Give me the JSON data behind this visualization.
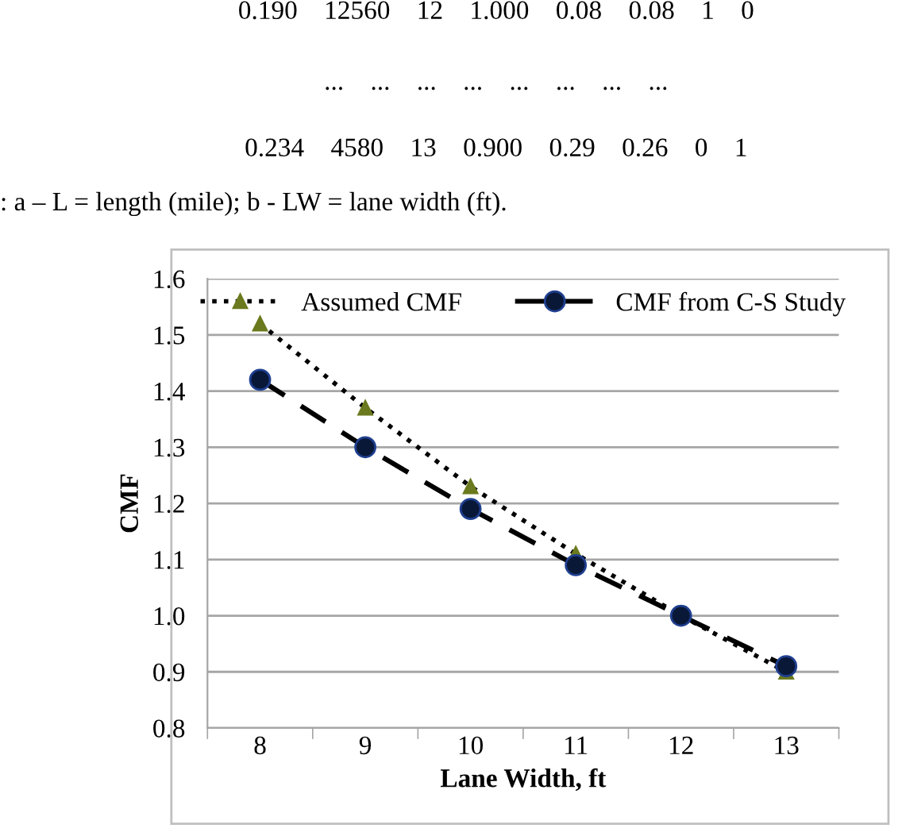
{
  "chart_data": {
    "type": "line",
    "xlabel": "Lane Width, ft",
    "ylabel": "CMF",
    "categories": [
      "8",
      "9",
      "10",
      "11",
      "12",
      "13"
    ],
    "series": [
      {
        "name": "Assumed CMF",
        "color": "#000000",
        "marker": "triangle",
        "line_style": "dotted",
        "values": [
          1.52,
          1.37,
          1.23,
          1.11,
          1.0,
          0.9
        ]
      },
      {
        "name": "CMF from C-S Study",
        "color": "#000000",
        "marker": "circle",
        "line_style": "dashed",
        "values": [
          1.42,
          1.3,
          1.19,
          1.09,
          1.0,
          0.91
        ]
      }
    ],
    "ylim": [
      0.8,
      1.6
    ],
    "yticks": [
      {
        "value": 0.8,
        "label": "0.8"
      },
      {
        "value": 0.9,
        "label": "0.9"
      },
      {
        "value": 1.0,
        "label": "1.0"
      },
      {
        "value": 1.1,
        "label": "1.1"
      },
      {
        "value": 1.2,
        "label": "1.2"
      },
      {
        "value": 1.3,
        "label": "1.3"
      },
      {
        "value": 1.4,
        "label": "1.4"
      },
      {
        "value": 1.5,
        "label": "1.5"
      },
      {
        "value": 1.6,
        "label": "1.6"
      }
    ],
    "grid": "y",
    "legend": "top",
    "annotations": [
      "0.190    12560    12    1.000    0.08    0.08    1    0",
      "...    ...    ...    ...    ...    ...    ...    ...",
      "0.234    4580    13    0.900    0.29    0.26    0    1",
      ": a – L = length (mile); b - LW = lane width (ft)."
    ]
  }
}
